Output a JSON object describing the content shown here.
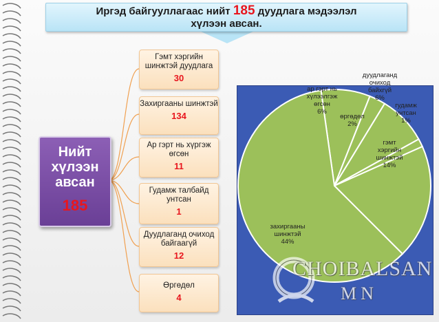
{
  "header": {
    "title_before": "Иргэд байгууллагаас нийт",
    "title_number": "185",
    "title_after": "дуудлага мэдээлэл",
    "title_line2": "хүлээн авсан."
  },
  "total": {
    "label": "Нийт хүлээн авсан",
    "value": "185"
  },
  "categories": [
    {
      "label": "Гэмт хэргийн шинжтэй дуудлага",
      "value": "30"
    },
    {
      "label": "Захиргааны шинжтэй",
      "value": "134"
    },
    {
      "label": "Ар гэрт нь хүргэж өгсөн",
      "value": "11"
    },
    {
      "label": "Гудамж талбайд унтсан",
      "value": "1"
    },
    {
      "label": "Дуудлаганд очиход байгаагүй",
      "value": "12"
    },
    {
      "label": "Өргөдөл",
      "value": "4"
    }
  ],
  "chart_data": {
    "type": "pie",
    "slices": [
      {
        "name": "захиргааны шинжтэй",
        "percent": 44,
        "label": "44%"
      },
      {
        "name": "ар гэрт нь хүлээлгэж өгсөн",
        "percent": 6,
        "label": "6%"
      },
      {
        "name": "өргөдөл",
        "percent": 2,
        "label": "2%"
      },
      {
        "name": "дуудлаганд очиход байхгүй",
        "percent": 6,
        "label": "6%"
      },
      {
        "name": "гудамж унтсан",
        "percent": 1,
        "label": "1%"
      },
      {
        "name": "гэмт хэргийн шинжтэй",
        "percent": 14,
        "label": "14%"
      }
    ],
    "colors": {
      "slice": "#9cc05a",
      "background": "#3b5bb4",
      "border": "#ffffff"
    }
  },
  "watermark": {
    "line1": "CHOIBALSAN",
    "line2": "MN"
  },
  "colors": {
    "accent_red": "#e8161e",
    "purple": "#7a4da6",
    "orange": "#f1c694"
  }
}
